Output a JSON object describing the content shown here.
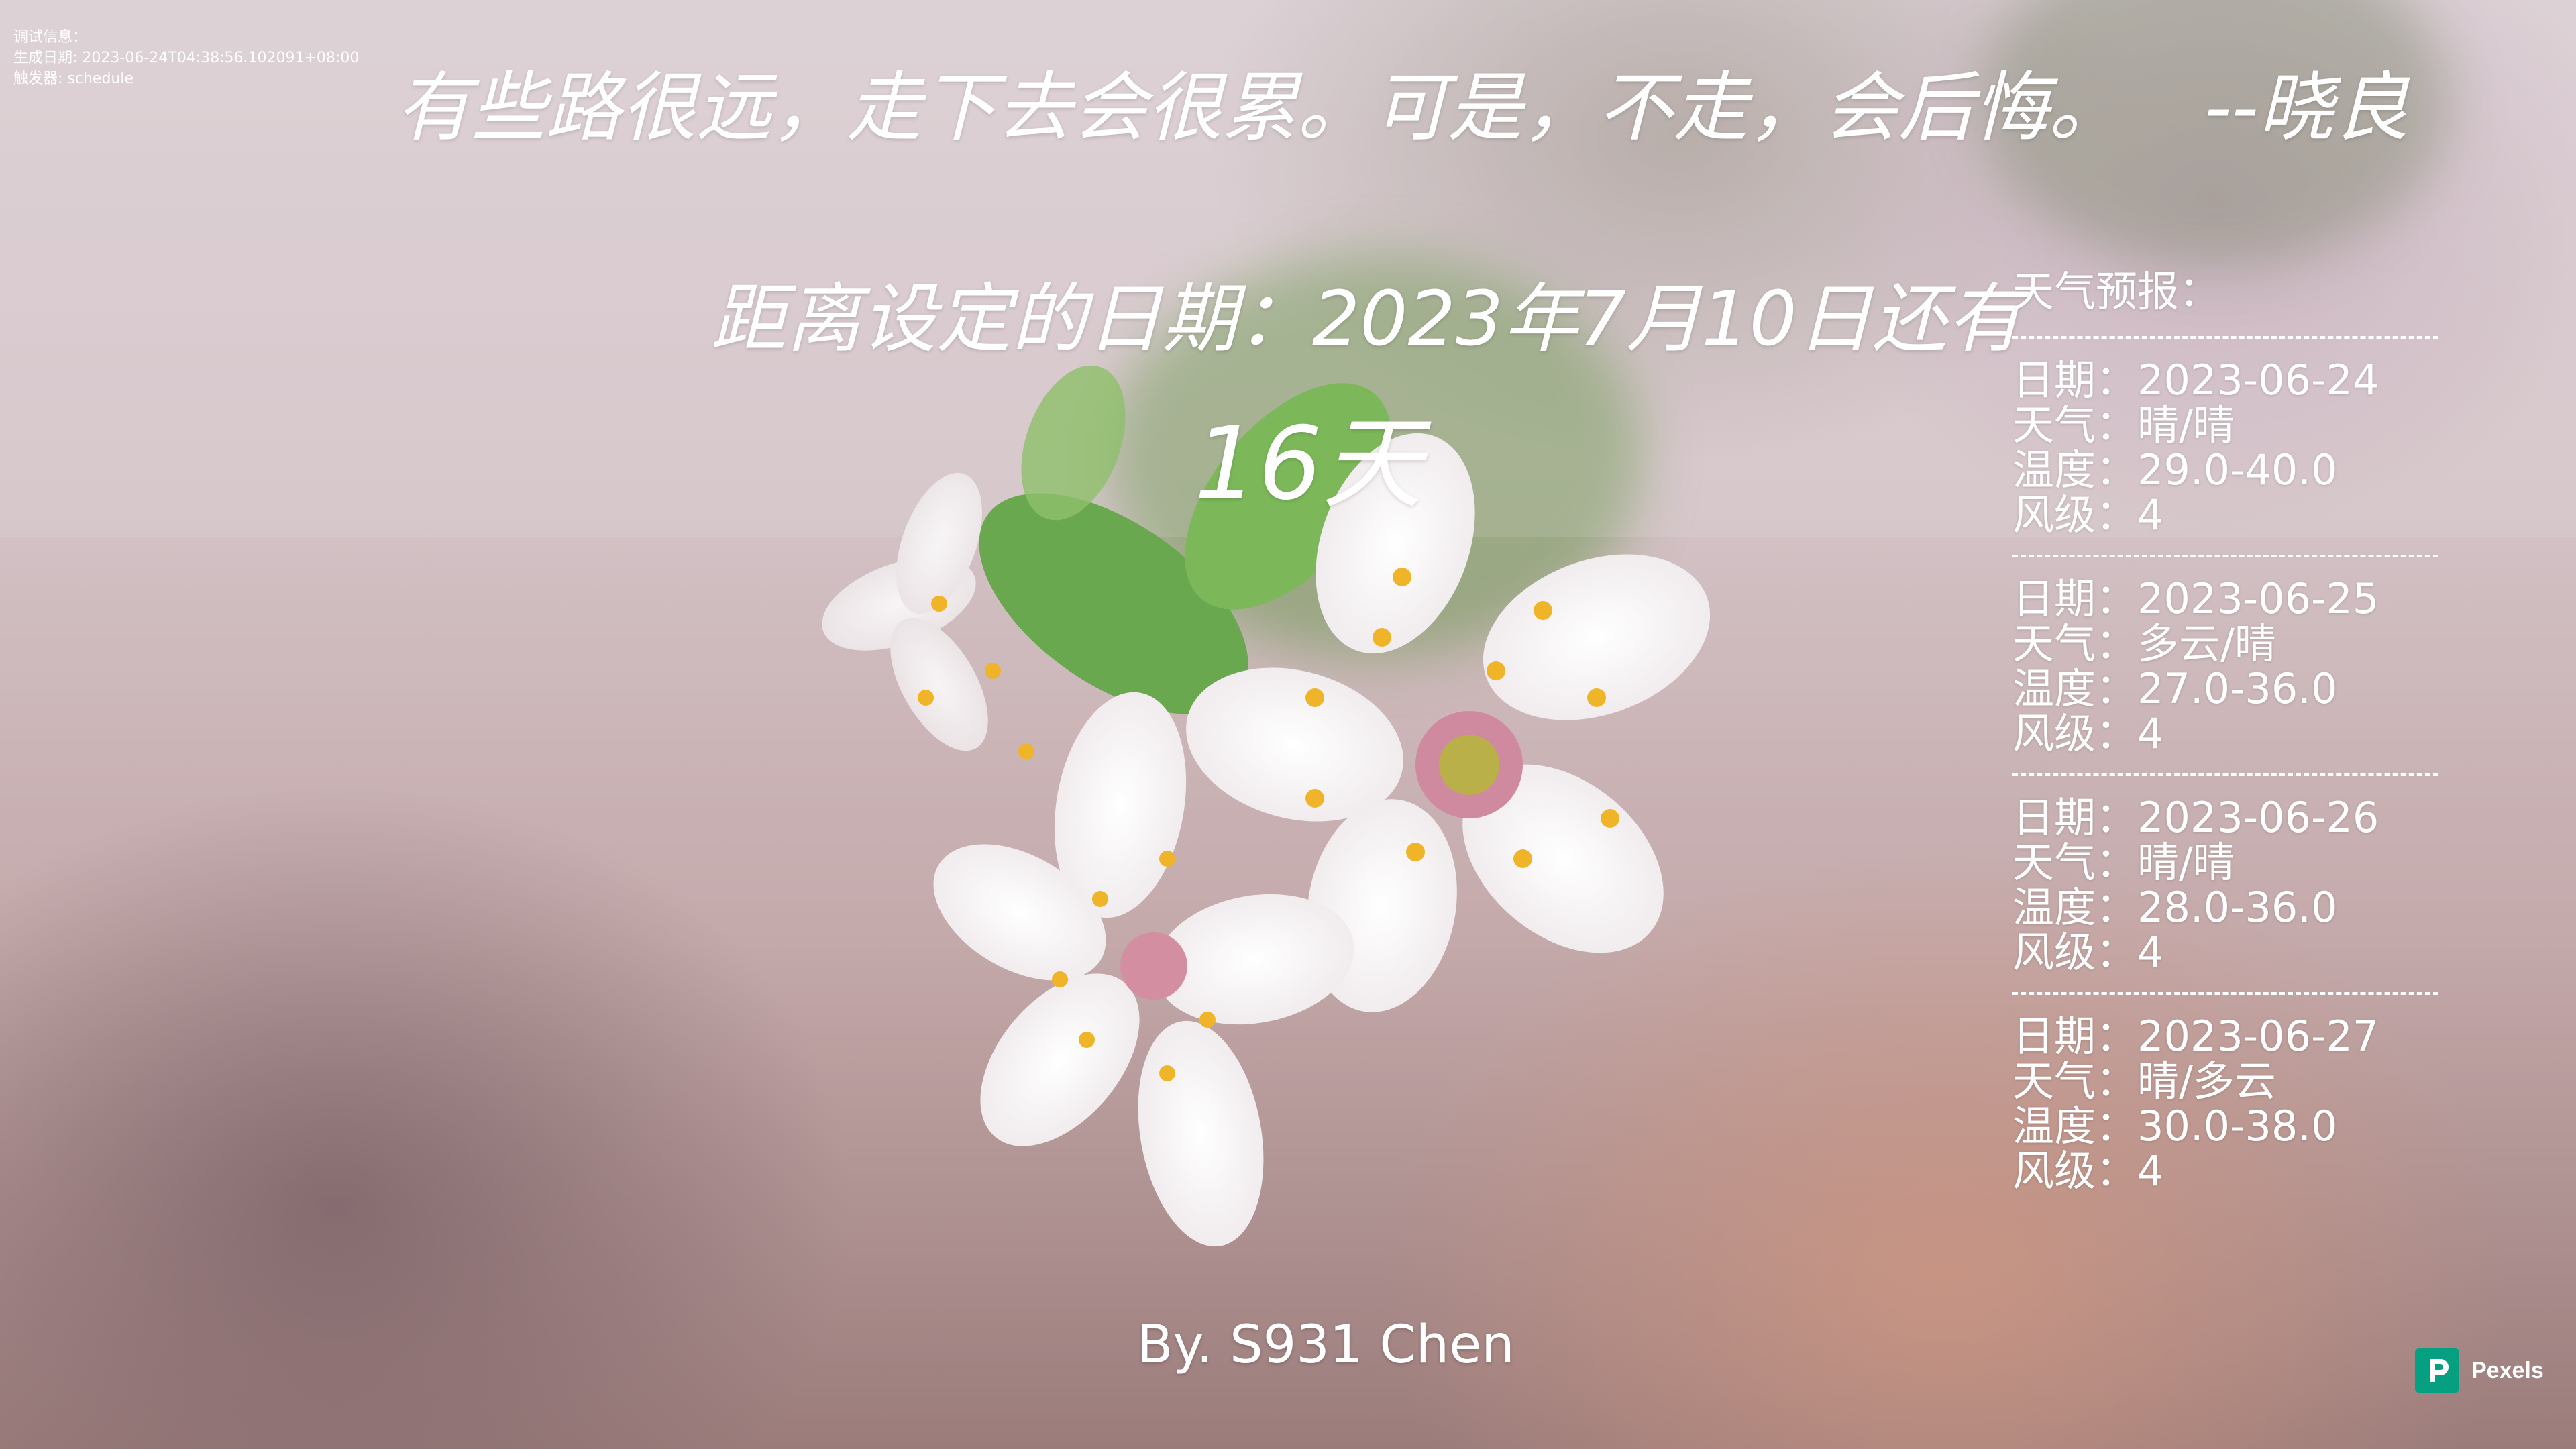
{
  "debug": {
    "title": "调试信息：",
    "date_line": "生成日期: 2023-06-24T04:38:56.102091+08:00",
    "trigger_line": "触发器: schedule"
  },
  "quote": {
    "text": "有些路很远，走下去会很累。可是，不走，会后悔。",
    "author": "--晓良"
  },
  "countdown": {
    "label": "距离设定的日期：2023年7月10日还有",
    "days": "16天"
  },
  "weather": {
    "title": "天气预报：",
    "separator": "----------------------------",
    "days": [
      {
        "date": "日期：2023-06-24",
        "weather": "天气：晴/晴",
        "temp": "温度：29.0-40.0",
        "wind": "风级：4"
      },
      {
        "date": "日期：2023-06-25",
        "weather": "天气：多云/晴",
        "temp": "温度：27.0-36.0",
        "wind": "风级：4"
      },
      {
        "date": "日期：2023-06-26",
        "weather": "天气：晴/晴",
        "temp": "温度：28.0-36.0",
        "wind": "风级：4"
      },
      {
        "date": "日期：2023-06-27",
        "weather": "天气：晴/多云",
        "temp": "温度：30.0-38.0",
        "wind": "风级：4"
      }
    ]
  },
  "byline": "By. S931 Chen",
  "credit": {
    "brand": "Pexels",
    "logo_icon": "pexels-logo-icon",
    "brand_color": "#05a081"
  }
}
